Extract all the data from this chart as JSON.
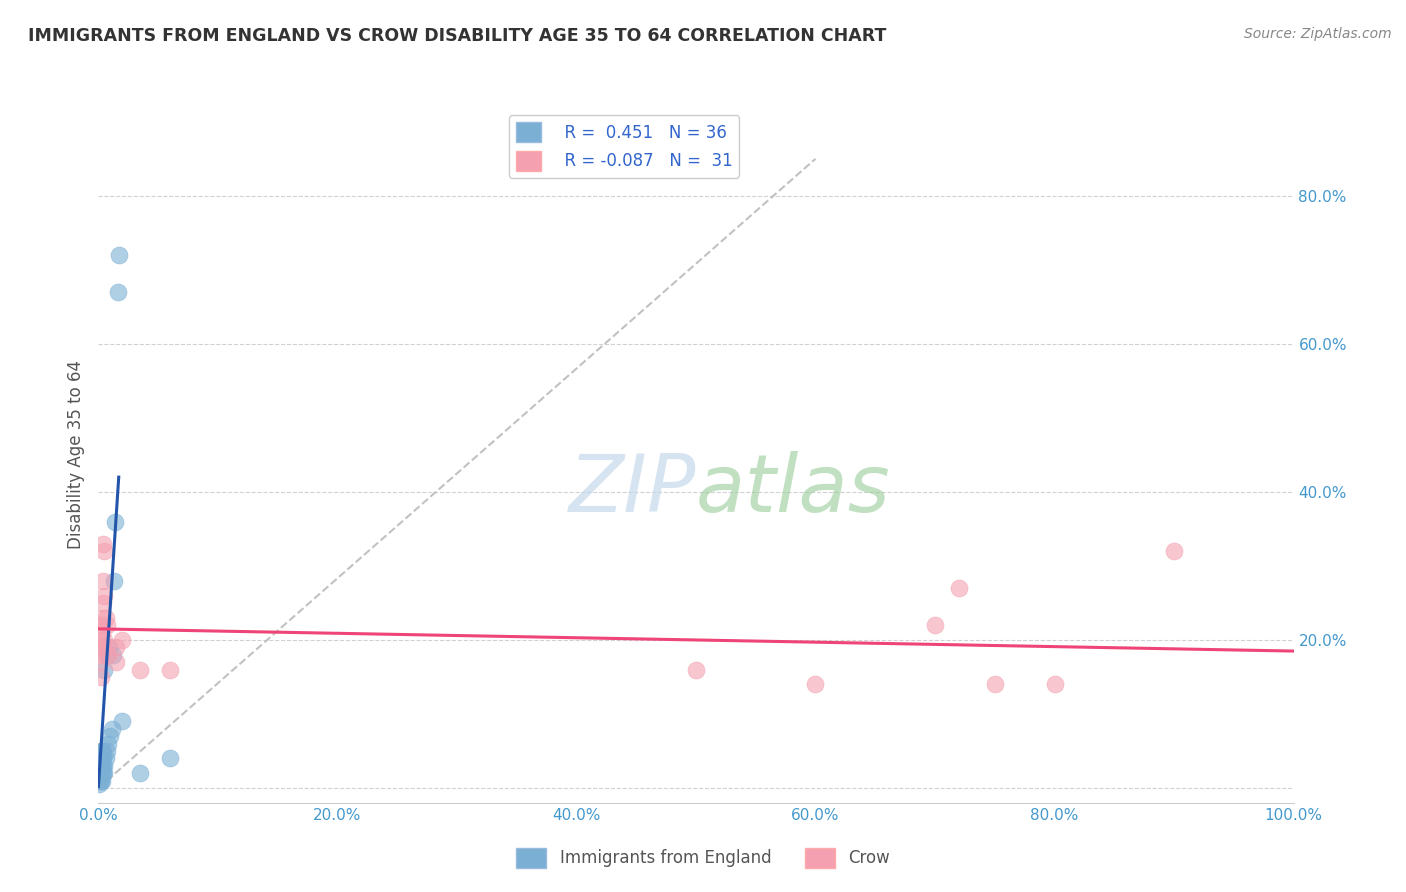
{
  "title": "IMMIGRANTS FROM ENGLAND VS CROW DISABILITY AGE 35 TO 64 CORRELATION CHART",
  "source": "Source: ZipAtlas.com",
  "ylabel": "Disability Age 35 to 64",
  "xlim": [
    0,
    1.0
  ],
  "ylim": [
    -0.02,
    0.92
  ],
  "xticks": [
    0.0,
    0.2,
    0.4,
    0.6,
    0.8,
    1.0
  ],
  "yticks": [
    0.0,
    0.2,
    0.4,
    0.6,
    0.8
  ],
  "xticklabels": [
    "0.0%",
    "20.0%",
    "40.0%",
    "60.0%",
    "80.0%",
    "100.0%"
  ],
  "yticklabels": [
    "",
    "20.0%",
    "40.0%",
    "60.0%",
    "80.0%"
  ],
  "legend_labels": [
    "Immigrants from England",
    "Crow"
  ],
  "blue_R": "0.451",
  "blue_N": "36",
  "pink_R": "-0.087",
  "pink_N": "31",
  "blue_color": "#7BAFD4",
  "pink_color": "#F4A0B0",
  "blue_scatter": [
    [
      0.0005,
      0.005
    ],
    [
      0.001,
      0.01
    ],
    [
      0.001,
      0.02
    ],
    [
      0.001,
      0.03
    ],
    [
      0.001,
      0.04
    ],
    [
      0.002,
      0.01
    ],
    [
      0.002,
      0.02
    ],
    [
      0.002,
      0.03
    ],
    [
      0.002,
      0.05
    ],
    [
      0.003,
      0.01
    ],
    [
      0.003,
      0.02
    ],
    [
      0.003,
      0.03
    ],
    [
      0.003,
      0.04
    ],
    [
      0.003,
      0.05
    ],
    [
      0.004,
      0.02
    ],
    [
      0.004,
      0.03
    ],
    [
      0.004,
      0.04
    ],
    [
      0.004,
      0.05
    ],
    [
      0.005,
      0.02
    ],
    [
      0.005,
      0.03
    ],
    [
      0.005,
      0.16
    ],
    [
      0.006,
      0.04
    ],
    [
      0.007,
      0.05
    ],
    [
      0.007,
      0.18
    ],
    [
      0.008,
      0.06
    ],
    [
      0.009,
      0.19
    ],
    [
      0.01,
      0.07
    ],
    [
      0.011,
      0.08
    ],
    [
      0.012,
      0.18
    ],
    [
      0.013,
      0.28
    ],
    [
      0.014,
      0.36
    ],
    [
      0.016,
      0.67
    ],
    [
      0.017,
      0.72
    ],
    [
      0.02,
      0.09
    ],
    [
      0.035,
      0.02
    ],
    [
      0.06,
      0.04
    ]
  ],
  "pink_scatter": [
    [
      0.001,
      0.17
    ],
    [
      0.001,
      0.19
    ],
    [
      0.002,
      0.15
    ],
    [
      0.002,
      0.2
    ],
    [
      0.002,
      0.22
    ],
    [
      0.003,
      0.18
    ],
    [
      0.003,
      0.21
    ],
    [
      0.003,
      0.23
    ],
    [
      0.004,
      0.19
    ],
    [
      0.004,
      0.25
    ],
    [
      0.004,
      0.28
    ],
    [
      0.004,
      0.33
    ],
    [
      0.005,
      0.2
    ],
    [
      0.005,
      0.26
    ],
    [
      0.005,
      0.32
    ],
    [
      0.006,
      0.23
    ],
    [
      0.007,
      0.19
    ],
    [
      0.007,
      0.22
    ],
    [
      0.008,
      0.18
    ],
    [
      0.015,
      0.17
    ],
    [
      0.015,
      0.19
    ],
    [
      0.02,
      0.2
    ],
    [
      0.035,
      0.16
    ],
    [
      0.06,
      0.16
    ],
    [
      0.5,
      0.16
    ],
    [
      0.6,
      0.14
    ],
    [
      0.7,
      0.22
    ],
    [
      0.72,
      0.27
    ],
    [
      0.75,
      0.14
    ],
    [
      0.8,
      0.14
    ],
    [
      0.9,
      0.32
    ]
  ],
  "blue_line_x": [
    0.0,
    0.017
  ],
  "blue_line_y": [
    0.002,
    0.42
  ],
  "pink_line_x": [
    0.0,
    1.0
  ],
  "pink_line_y": [
    0.215,
    0.185
  ],
  "diag_line_x": [
    0.0,
    0.6
  ],
  "diag_line_y": [
    0.0,
    0.85
  ],
  "watermark_zip": "ZIP",
  "watermark_atlas": "atlas",
  "watermark_color_zip": "#C8D8E8",
  "watermark_color_atlas": "#A0C8A0",
  "background_color": "#FFFFFF"
}
